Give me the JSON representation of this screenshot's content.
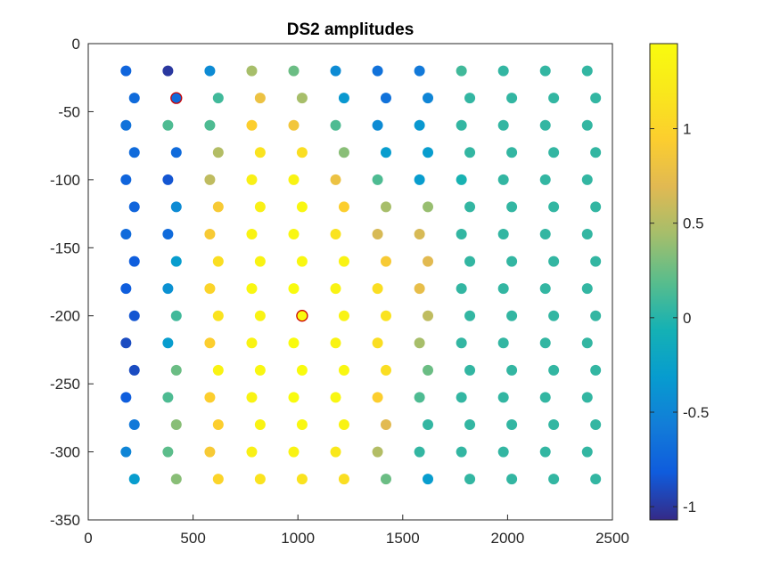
{
  "chart_data": {
    "type": "scatter",
    "title": "DS2 amplitudes",
    "xlabel": "",
    "ylabel": "",
    "xlim": [
      0,
      2500
    ],
    "ylim": [
      -350,
      0
    ],
    "xticks": [
      "0",
      "500",
      "1000",
      "1500",
      "2000",
      "2500"
    ],
    "yticks": [
      "0",
      "-50",
      "-100",
      "-150",
      "-200",
      "-250",
      "-300",
      "-350"
    ],
    "grid": false,
    "colormap": "parula",
    "clim": [
      -1.07,
      1.45
    ],
    "colorbar_ticks": [
      "1",
      "0.5",
      "0",
      "-0.5",
      "-1"
    ],
    "highlight_color": "#cc0000",
    "grid_points": {
      "even_rows_x": [
        180,
        380,
        580,
        780,
        980,
        1180,
        1380,
        1580,
        1780,
        1980,
        2180,
        2380
      ],
      "odd_rows_x": [
        220,
        420,
        620,
        820,
        1020,
        1220,
        1420,
        1620,
        1820,
        2020,
        2220,
        2420
      ],
      "rows_y": [
        -20,
        -40,
        -60,
        -80,
        -100,
        -120,
        -140,
        -160,
        -180,
        -200,
        -220,
        -240,
        -260,
        -280,
        -300,
        -320
      ],
      "amplitudes": [
        [
          -0.75,
          -1.0,
          -0.45,
          0.45,
          0.25,
          -0.45,
          -0.65,
          -0.6,
          0.1,
          0.05,
          0.05,
          0.05
        ],
        [
          -0.7,
          -0.7,
          0.1,
          0.8,
          0.45,
          -0.35,
          -0.65,
          -0.5,
          0.05,
          0.05,
          0.05,
          0.05
        ],
        [
          -0.65,
          0.15,
          0.15,
          0.95,
          0.85,
          0.15,
          -0.45,
          -0.35,
          0.05,
          0.05,
          0.05,
          0.05
        ],
        [
          -0.7,
          -0.7,
          0.5,
          1.15,
          1.1,
          0.35,
          -0.3,
          -0.3,
          0.05,
          0.05,
          0.05,
          0.05
        ],
        [
          -0.75,
          -0.85,
          0.55,
          1.3,
          1.35,
          0.8,
          0.15,
          -0.3,
          -0.05,
          0.05,
          0.05,
          0.05
        ],
        [
          -0.75,
          -0.45,
          0.9,
          1.3,
          1.4,
          0.95,
          0.45,
          0.4,
          0.05,
          0.05,
          0.05,
          0.05
        ],
        [
          -0.7,
          -0.7,
          0.9,
          1.35,
          1.4,
          1.15,
          0.65,
          0.65,
          0.05,
          0.05,
          0.05,
          0.05
        ],
        [
          -0.8,
          -0.3,
          1.1,
          1.35,
          1.4,
          1.35,
          0.9,
          0.7,
          0.05,
          0.05,
          0.05,
          0.05
        ],
        [
          -0.8,
          -0.4,
          1.0,
          1.4,
          1.45,
          1.35,
          1.1,
          0.75,
          0.05,
          0.05,
          0.05,
          0.05
        ],
        [
          -0.85,
          0.1,
          1.15,
          1.35,
          1.45,
          1.35,
          1.15,
          0.55,
          0.05,
          0.05,
          0.05,
          0.05
        ],
        [
          -0.9,
          -0.3,
          0.95,
          1.35,
          1.45,
          1.35,
          1.1,
          0.45,
          0.05,
          0.05,
          0.05,
          0.05
        ],
        [
          -0.9,
          0.25,
          1.35,
          1.4,
          1.45,
          1.4,
          1.1,
          0.25,
          0.05,
          0.05,
          0.05,
          0.05
        ],
        [
          -0.8,
          0.15,
          0.95,
          1.35,
          1.45,
          1.4,
          0.95,
          0.15,
          0.05,
          0.05,
          0.05,
          0.05
        ],
        [
          -0.6,
          0.35,
          0.95,
          1.35,
          1.4,
          1.35,
          0.7,
          0.05,
          0.05,
          0.05,
          0.05,
          0.05
        ],
        [
          -0.5,
          0.2,
          0.9,
          1.3,
          1.35,
          1.2,
          0.5,
          0.05,
          0.05,
          0.05,
          0.05,
          0.05
        ],
        [
          -0.3,
          0.35,
          1.0,
          1.15,
          1.15,
          1.1,
          0.25,
          -0.3,
          0.05,
          0.05,
          0.05,
          0.05
        ]
      ]
    },
    "highlighted_points": [
      {
        "x": 420,
        "y": -40
      },
      {
        "x": 1020,
        "y": -200
      }
    ]
  }
}
